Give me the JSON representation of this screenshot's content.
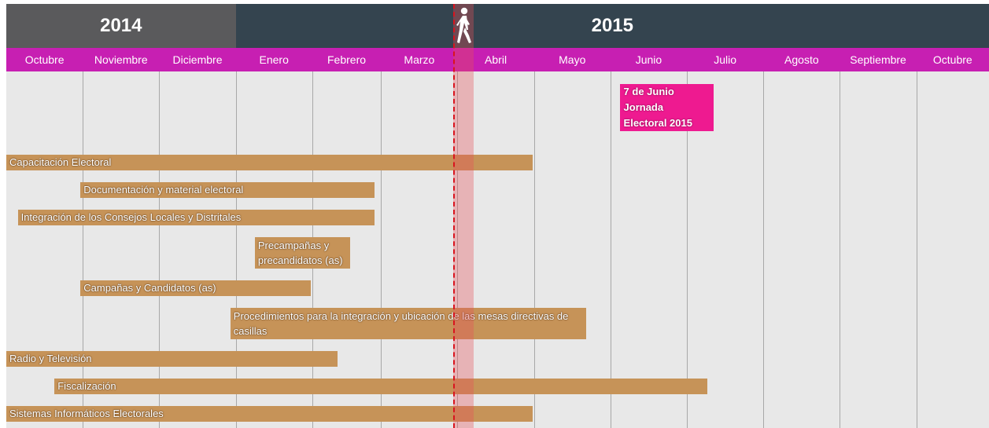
{
  "years": [
    {
      "label": "2014",
      "start": 0,
      "end": 3,
      "color": "#5a5a5c"
    },
    {
      "label": "2015",
      "start": 3,
      "end": 13,
      "color": "#34444f"
    }
  ],
  "chart_data": {
    "type": "gantt",
    "months": [
      "Octubre",
      "Noviembre",
      "Diciembre",
      "Enero",
      "Febrero",
      "Marzo",
      "Abril",
      "Mayo",
      "Junio",
      "Julio",
      "Agosto",
      "Septiembre",
      "Octubre"
    ],
    "month_units": [
      1,
      1,
      1,
      1,
      0.9,
      1,
      1,
      1,
      1,
      1,
      1,
      1,
      0.95
    ],
    "today": 5.95,
    "annotation": {
      "lines": [
        "7 de Junio",
        "Jornada",
        "Electoral 2015"
      ],
      "start": 8.12,
      "end": 9.35,
      "color": "#ee1a90"
    },
    "tasks": [
      {
        "label": "Capacitación Electoral",
        "start": 0,
        "end": 6.98
      },
      {
        "label": "Documentación y material electoral",
        "start": 0.97,
        "end": 4.9
      },
      {
        "label": "Integración de los Consejos Locales y Distritales",
        "start": 0.15,
        "end": 4.9
      },
      {
        "label": "Precampañas y precandidatos (as)",
        "start": 3.25,
        "end": 4.55
      },
      {
        "label": "Campañas y Candidatos (as)",
        "start": 0.97,
        "end": 3.98
      },
      {
        "label": "Procedimientos para la integración y ubicación de las mesas directivas de casillas",
        "start": 2.93,
        "end": 7.68
      },
      {
        "label": "Radio y Televisión",
        "start": 0,
        "end": 4.37
      },
      {
        "label": "Fiscalización",
        "start": 0.63,
        "end": 9.27
      },
      {
        "label": "Sistemas Informáticos Electorales",
        "start": 0,
        "end": 6.98
      }
    ],
    "bar_color": "#c69358",
    "header_color": "#c71fb2"
  }
}
